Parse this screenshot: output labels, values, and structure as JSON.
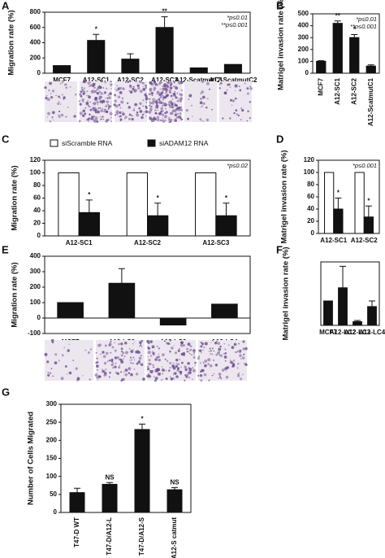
{
  "chart_data": [
    {
      "type": "bar",
      "panel": "A",
      "ylabel": "Migration rate (%)",
      "categories": [
        "MCF7",
        "A12-SC1",
        "A12-SC2",
        "A12-SC3",
        "A12-ScatmutC1",
        "A12-ScatmutC2"
      ],
      "values": [
        100,
        430,
        185,
        600,
        70,
        115
      ],
      "errors": [
        0,
        80,
        70,
        140,
        0,
        0
      ],
      "markers": [
        null,
        "*",
        null,
        "**",
        null,
        null
      ],
      "color": "#111111",
      "ylim": [
        0,
        800
      ],
      "yticks": [
        0,
        200,
        400,
        600,
        800
      ],
      "notes": [
        "*p≤0.01",
        "**p≤0.001"
      ]
    },
    {
      "type": "bar",
      "panel": "B",
      "ylabel": "Matrigel invasion rate (%)",
      "categories": [
        "MCF7",
        "A12-SC1",
        "A12-SC2",
        "A12-ScatmutC1"
      ],
      "values": [
        100,
        420,
        300,
        60
      ],
      "errors": [
        5,
        20,
        25,
        10
      ],
      "markers": [
        null,
        "**",
        "*",
        null
      ],
      "color": "#111111",
      "ylim": [
        0,
        500
      ],
      "yticks": [
        0,
        100,
        200,
        300,
        400,
        500
      ],
      "notes": [
        "*p≤0.01",
        "**p≤0.001"
      ],
      "rotated_labels": true
    },
    {
      "type": "grouped_bar",
      "panel": "C",
      "ylabel": "Migration rate (%)",
      "categories": [
        "A12-SC1",
        "A12-SC2",
        "A12-SC3"
      ],
      "series": [
        {
          "name": "siScramble RNA",
          "color": "#ffffff",
          "values": [
            100,
            100,
            100
          ],
          "errors": [
            0,
            0,
            0
          ]
        },
        {
          "name": "siADAM12 RNA",
          "color": "#111111",
          "values": [
            37,
            32,
            32
          ],
          "errors": [
            20,
            20,
            20
          ],
          "markers": [
            "*",
            "*",
            "*"
          ]
        }
      ],
      "ylim": [
        0,
        120
      ],
      "yticks": [
        0,
        20,
        40,
        60,
        80,
        100,
        120
      ],
      "notes": [
        "*p≤0.02"
      ],
      "legend": true
    },
    {
      "type": "grouped_bar",
      "panel": "D",
      "ylabel": "Matrigel invasion rate (%)",
      "categories": [
        "A12-SC1",
        "A12-SC2"
      ],
      "series": [
        {
          "name": "siScramble RNA",
          "color": "#ffffff",
          "values": [
            100,
            100
          ],
          "errors": [
            0,
            0
          ]
        },
        {
          "name": "siADAM12 RNA",
          "color": "#111111",
          "values": [
            40,
            27
          ],
          "errors": [
            18,
            18
          ],
          "markers": [
            "*",
            "*"
          ]
        }
      ],
      "ylim": [
        0,
        120
      ],
      "yticks": [
        0,
        20,
        40,
        60,
        80,
        100,
        120
      ],
      "notes": [
        "*p≤0.001"
      ]
    },
    {
      "type": "bar",
      "panel": "E",
      "ylabel": "Migration rate (%)",
      "categories": [
        "MCF7",
        "A12-LC2",
        "A12-LC3",
        "A12-LC4"
      ],
      "values": [
        100,
        225,
        -45,
        90
      ],
      "errors": [
        0,
        95,
        0,
        0
      ],
      "color": "#111111",
      "ylim": [
        -100,
        400
      ],
      "yticks": [
        -100,
        0,
        100,
        200,
        300,
        400
      ]
    },
    {
      "type": "bar",
      "panel": "F",
      "ylabel": "Matrigel invasion rate (%)",
      "categories": [
        "MCF7",
        "A12-LC2",
        "A12-LC3",
        "A12-LC4"
      ],
      "values": [
        100,
        154,
        15,
        77
      ],
      "errors": [
        0,
        88,
        5,
        23
      ],
      "color": "#111111",
      "ylim": [
        0,
        260
      ]
    },
    {
      "type": "bar",
      "panel": "G",
      "ylabel": "Number of Cells Migrated",
      "categories": [
        "T47-D WT",
        "T47-D/A12-L",
        "T47-D/A12-S",
        "T47-D/A12-S catmut"
      ],
      "values": [
        55,
        78,
        230,
        63
      ],
      "errors": [
        12,
        5,
        15,
        6
      ],
      "markers": [
        null,
        "NS",
        "*",
        "NS"
      ],
      "color": "#111111",
      "ylim": [
        0,
        300
      ],
      "yticks": [
        0,
        50,
        100,
        150,
        200,
        250,
        300
      ],
      "rotated_labels": true
    }
  ]
}
